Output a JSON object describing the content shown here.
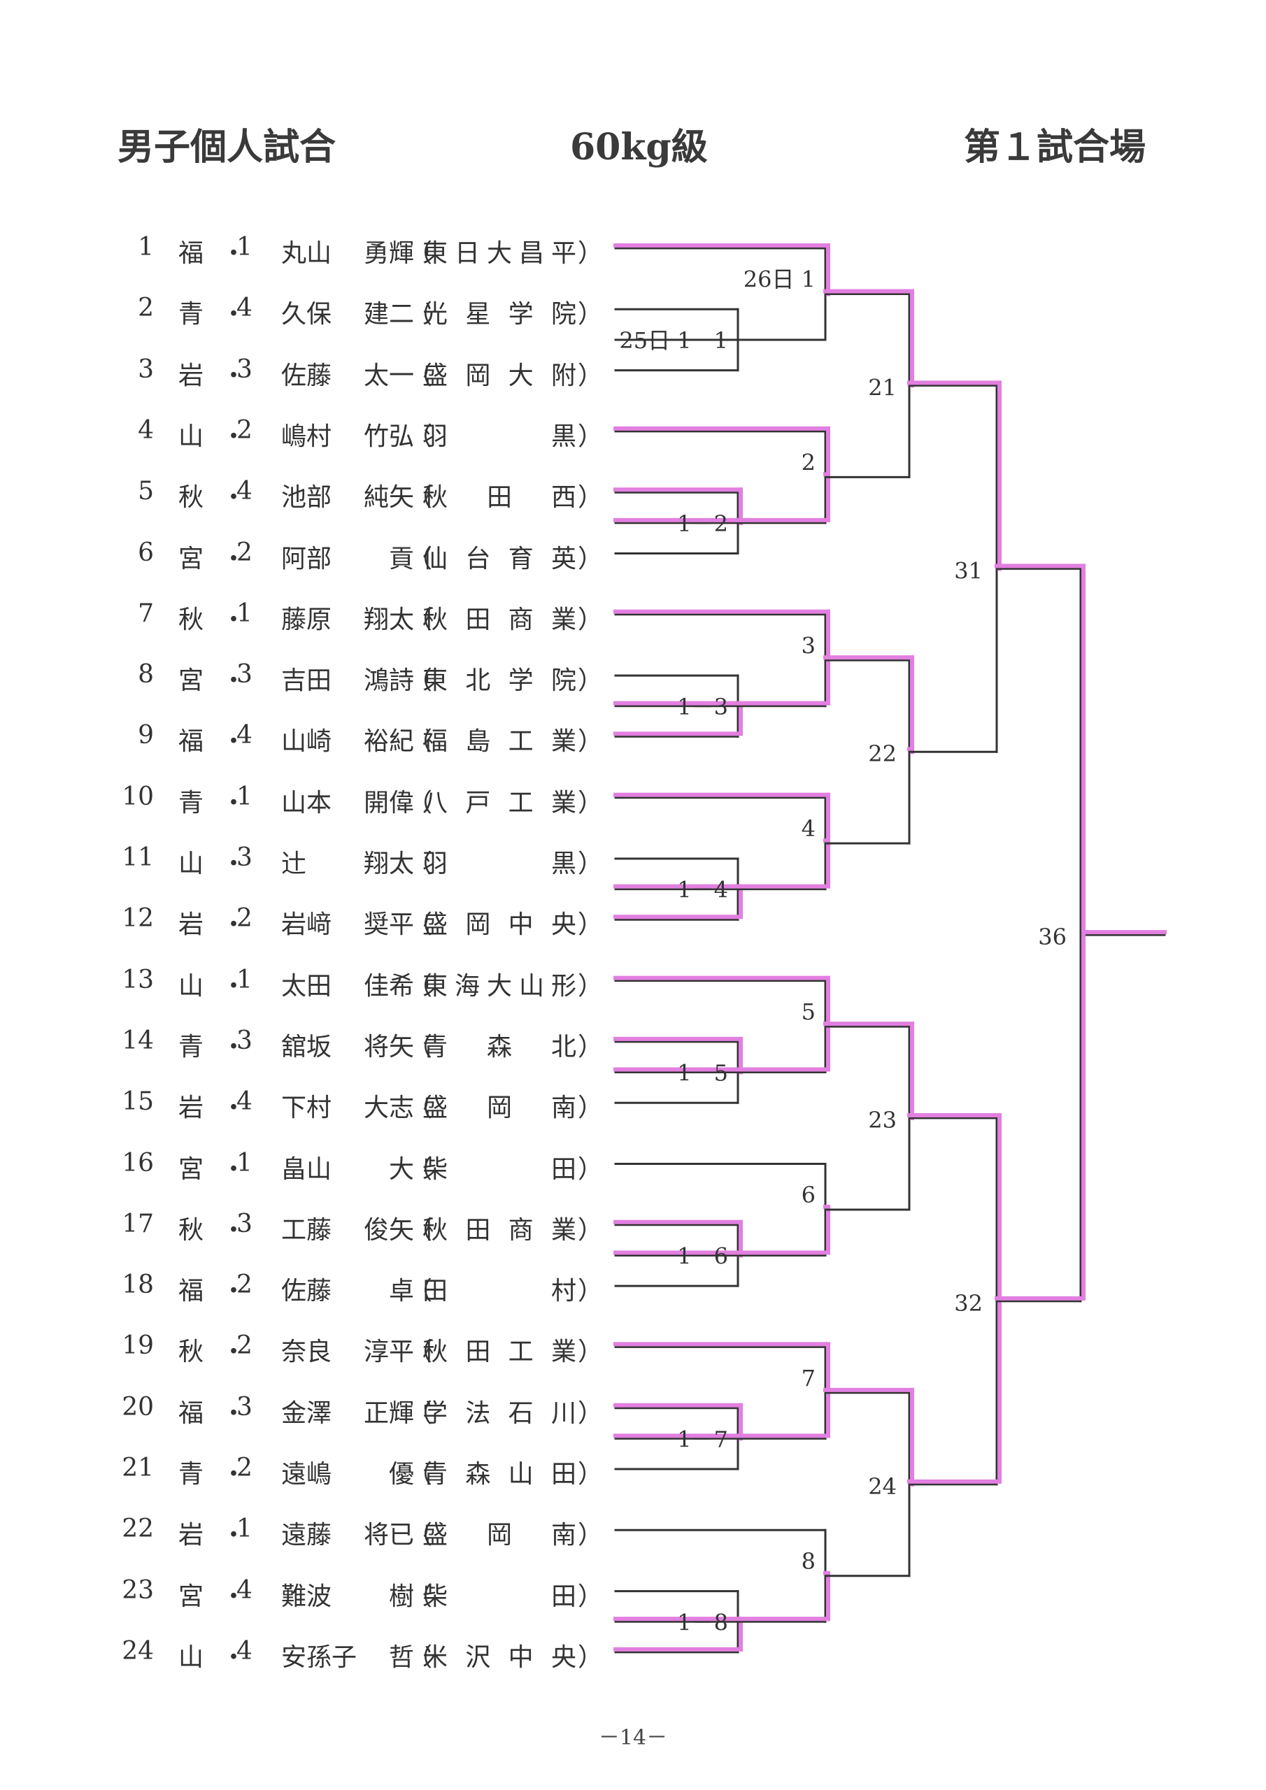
{
  "header": {
    "event": "男子個人試合",
    "weight": "60kg級",
    "venue": "第１試合場"
  },
  "entries": [
    {
      "no": "1",
      "pref": "福",
      "grade": "1",
      "surname": "丸山",
      "given": "勇輝",
      "school": "東日大昌平"
    },
    {
      "no": "2",
      "pref": "青",
      "grade": "4",
      "surname": "久保",
      "given": "建二",
      "school": "光星学院"
    },
    {
      "no": "3",
      "pref": "岩",
      "grade": "3",
      "surname": "佐藤",
      "given": "太一",
      "school": "盛岡大附"
    },
    {
      "no": "4",
      "pref": "山",
      "grade": "2",
      "surname": "嶋村",
      "given": "竹弘",
      "school": "羽黒"
    },
    {
      "no": "5",
      "pref": "秋",
      "grade": "4",
      "surname": "池部",
      "given": "純矢",
      "school": "秋田西"
    },
    {
      "no": "6",
      "pref": "宮",
      "grade": "2",
      "surname": "阿部",
      "given": "貢",
      "school": "仙台育英"
    },
    {
      "no": "7",
      "pref": "秋",
      "grade": "1",
      "surname": "藤原",
      "given": "翔太",
      "school": "秋田商業"
    },
    {
      "no": "8",
      "pref": "宮",
      "grade": "3",
      "surname": "吉田",
      "given": "鴻詩",
      "school": "東北学院"
    },
    {
      "no": "9",
      "pref": "福",
      "grade": "4",
      "surname": "山崎",
      "given": "裕紀",
      "school": "福島工業"
    },
    {
      "no": "10",
      "pref": "青",
      "grade": "1",
      "surname": "山本",
      "given": "開偉",
      "school": "八戸工業"
    },
    {
      "no": "11",
      "pref": "山",
      "grade": "3",
      "surname": "辻",
      "given": "翔太",
      "school": "羽黒"
    },
    {
      "no": "12",
      "pref": "岩",
      "grade": "2",
      "surname": "岩﨑",
      "given": "奨平",
      "school": "盛岡中央"
    },
    {
      "no": "13",
      "pref": "山",
      "grade": "1",
      "surname": "太田",
      "given": "佳希",
      "school": "東海大山形"
    },
    {
      "no": "14",
      "pref": "青",
      "grade": "3",
      "surname": "舘坂",
      "given": "将矢",
      "school": "青森北"
    },
    {
      "no": "15",
      "pref": "岩",
      "grade": "4",
      "surname": "下村",
      "given": "大志",
      "school": "盛岡南"
    },
    {
      "no": "16",
      "pref": "宮",
      "grade": "1",
      "surname": "畠山",
      "given": "大",
      "school": "柴田"
    },
    {
      "no": "17",
      "pref": "秋",
      "grade": "3",
      "surname": "工藤",
      "given": "俊矢",
      "school": "秋田商業"
    },
    {
      "no": "18",
      "pref": "福",
      "grade": "2",
      "surname": "佐藤",
      "given": "卓",
      "school": "田村"
    },
    {
      "no": "19",
      "pref": "秋",
      "grade": "2",
      "surname": "奈良",
      "given": "淳平",
      "school": "秋田工業"
    },
    {
      "no": "20",
      "pref": "福",
      "grade": "3",
      "surname": "金澤",
      "given": "正輝",
      "school": "学法石川"
    },
    {
      "no": "21",
      "pref": "青",
      "grade": "2",
      "surname": "遠嶋",
      "given": "優",
      "school": "青森山田"
    },
    {
      "no": "22",
      "pref": "岩",
      "grade": "1",
      "surname": "遠藤",
      "given": "将已",
      "school": "盛岡南"
    },
    {
      "no": "23",
      "pref": "宮",
      "grade": "4",
      "surname": "難波",
      "given": "樹",
      "school": "柴田"
    },
    {
      "no": "24",
      "pref": "山",
      "grade": "4",
      "surname": "安孫子",
      "given": "哲",
      "school": "米沢中央"
    }
  ],
  "matches": {
    "m_1_1": "25日 1－1",
    "m_1": "26日 1",
    "m_1_2": "1－2",
    "m_2": "2",
    "m_1_3": "1－3",
    "m_3": "3",
    "m_1_4": "1－4",
    "m_4": "4",
    "m_1_5": "1－5",
    "m_5": "5",
    "m_1_6": "1－6",
    "m_6": "6",
    "m_1_7": "1－7",
    "m_7": "7",
    "m_1_8": "1－8",
    "m_8": "8",
    "m_21": "21",
    "m_22": "22",
    "m_23": "23",
    "m_24": "24",
    "m_31": "31",
    "m_32": "32",
    "m_36": "36"
  },
  "winners": [
    "1",
    "4",
    "5",
    "7",
    "9",
    "10",
    "12",
    "13",
    "14",
    "17",
    "19",
    "20",
    "24"
  ],
  "colors": {
    "line": "#333333",
    "winner": "#e27fe0"
  },
  "page_number": "－14－"
}
